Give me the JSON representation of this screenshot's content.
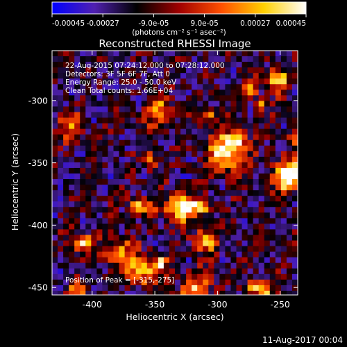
{
  "colorbar": {
    "ticks": [
      "-0.00045",
      "-0.00027",
      "-9.0e-05",
      "9.0e-05",
      "0.00027",
      "0.00045"
    ],
    "units": "(photons cm⁻² s⁻¹ asec⁻²)",
    "range": [
      -0.00045,
      0.00045
    ],
    "colors": [
      "#0000ff",
      "#5020b0",
      "#000000",
      "#a00000",
      "#ff5000",
      "#ffd000",
      "#ffffff"
    ]
  },
  "footer": {
    "timestamp": "11-Aug-2017 00:04"
  },
  "chart_data": {
    "type": "heatmap",
    "title": "Reconstructed RHESSI Image",
    "xlabel": "Heliocentric X (arcsec)",
    "ylabel": "Heliocentric Y (arcsec)",
    "xlim": [
      -432,
      -236
    ],
    "ylim": [
      -456,
      -260
    ],
    "xticks": [
      {
        "value": -400,
        "label": "-400"
      },
      {
        "value": -350,
        "label": "-350"
      },
      {
        "value": -300,
        "label": "-300"
      },
      {
        "value": -250,
        "label": "-250"
      }
    ],
    "yticks": [
      {
        "value": -300,
        "label": "-300"
      },
      {
        "value": -350,
        "label": "-350"
      },
      {
        "value": -400,
        "label": "-400"
      },
      {
        "value": -450,
        "label": "-450"
      }
    ],
    "annotations": [
      "22-Aug-2015 07:24:12.000 to 07:28:12.000",
      "Detectors: 3F 5F 6F 7F, Att 0",
      "Energy Range: 25.0 - 50.0 keV",
      "Clean    Total counts: 1.66E+04"
    ],
    "peak_label": "Position of Peak = [-315,-275]",
    "peak": [
      -315,
      -275
    ],
    "grid": false
  }
}
